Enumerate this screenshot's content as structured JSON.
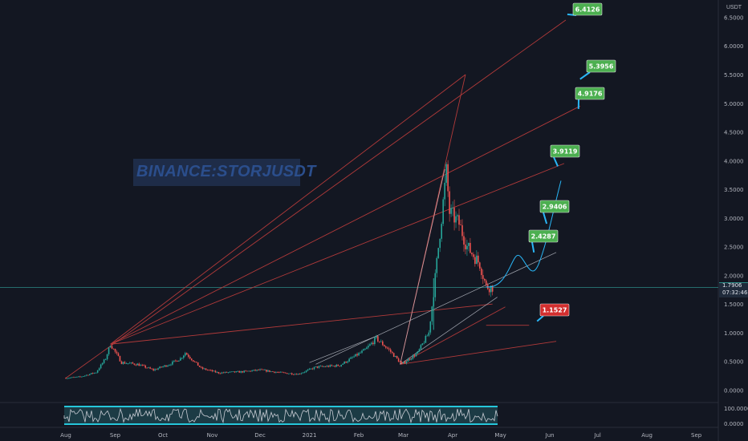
{
  "watermark": "BINANCE:STORJUSDT",
  "price_axis": {
    "unit": "USDT",
    "ticks": [
      "6.5000",
      "6.0000",
      "5.5000",
      "5.0000",
      "4.5000",
      "4.0000",
      "3.5000",
      "3.0000",
      "2.5000",
      "2.0000",
      "1.5000",
      "1.0000",
      "0.5000",
      "0.0000"
    ]
  },
  "current_price": {
    "value": "1.7906",
    "countdown": "07:32:46"
  },
  "time_axis": [
    "Aug",
    "Sep",
    "Oct",
    "Nov",
    "Dec",
    "2021",
    "Feb",
    "Mar",
    "Apr",
    "May",
    "Jun",
    "Jul",
    "Aug",
    "Sep"
  ],
  "oscillator_axis": [
    "100.0000",
    "0.0000"
  ],
  "target_labels": [
    {
      "text": "6.4126",
      "type": "target"
    },
    {
      "text": "5.3956",
      "type": "target"
    },
    {
      "text": "4.9176",
      "type": "target"
    },
    {
      "text": "3.9119",
      "type": "target"
    },
    {
      "text": "2.9406",
      "type": "target"
    },
    {
      "text": "2.4287",
      "type": "target"
    },
    {
      "text": "1.1527",
      "type": "stop"
    }
  ],
  "colors": {
    "background": "#131722",
    "up": "#26a69a",
    "down": "#ef5350",
    "target": "#4caf50",
    "stop": "#d32f2f",
    "fan_lines": "#b23a3a",
    "trend_lines": "#c8ccd4",
    "projection": "#29b6f6",
    "oscillator_band": "#26c6da"
  },
  "chart_data": {
    "type": "candlestick",
    "symbol": "BINANCE:STORJUSDT",
    "y_unit": "USDT",
    "ylim": [
      0,
      6.6
    ],
    "xlim": [
      "2020-07-28",
      "2021-09-30"
    ],
    "close_approx": [
      [
        "2020-08-01",
        0.21
      ],
      [
        "2020-08-10",
        0.23
      ],
      [
        "2020-08-20",
        0.31
      ],
      [
        "2020-08-26",
        0.55
      ],
      [
        "2020-08-29",
        0.8
      ],
      [
        "2020-09-05",
        0.48
      ],
      [
        "2020-09-15",
        0.45
      ],
      [
        "2020-09-25",
        0.35
      ],
      [
        "2020-10-05",
        0.45
      ],
      [
        "2020-10-12",
        0.55
      ],
      [
        "2020-10-15",
        0.65
      ],
      [
        "2020-10-25",
        0.38
      ],
      [
        "2020-11-05",
        0.3
      ],
      [
        "2020-11-20",
        0.32
      ],
      [
        "2020-12-01",
        0.35
      ],
      [
        "2020-12-15",
        0.3
      ],
      [
        "2020-12-25",
        0.28
      ],
      [
        "2021-01-05",
        0.4
      ],
      [
        "2021-01-20",
        0.43
      ],
      [
        "2021-02-05",
        0.7
      ],
      [
        "2021-02-12",
        0.9
      ],
      [
        "2021-02-20",
        0.7
      ],
      [
        "2021-02-28",
        0.45
      ],
      [
        "2021-03-10",
        0.65
      ],
      [
        "2021-03-17",
        1.0
      ],
      [
        "2021-03-20",
        1.7
      ],
      [
        "2021-03-28",
        3.8
      ],
      [
        "2021-03-30",
        3.1
      ],
      [
        "2021-04-05",
        2.9
      ],
      [
        "2021-04-10",
        2.5
      ],
      [
        "2021-04-18",
        2.2
      ],
      [
        "2021-04-22",
        1.8
      ],
      [
        "2021-04-26",
        1.79
      ]
    ],
    "price_targets": [
      6.4126,
      5.3956,
      4.9176,
      3.9119,
      2.9406,
      2.4287
    ],
    "stop_level": 1.1527,
    "current_price": 1.7906
  }
}
